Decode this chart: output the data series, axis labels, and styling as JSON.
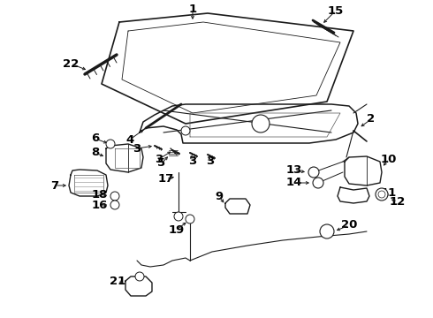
{
  "bg_color": "#ffffff",
  "line_color": "#1a1a1a",
  "label_color": "#000000",
  "fontsize": 9.5,
  "figsize": [
    4.9,
    3.6
  ],
  "dpi": 100
}
